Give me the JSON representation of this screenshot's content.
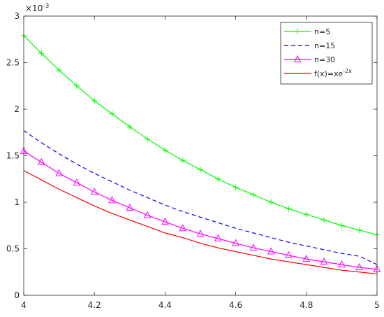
{
  "chart_data": {
    "type": "line",
    "title": "",
    "xlabel": "",
    "ylabel": "",
    "y_exponent_label": "×10",
    "y_exponent_power": "-3",
    "xlim": [
      4,
      5
    ],
    "ylim": [
      0,
      3
    ],
    "x_ticks": [
      4,
      4.2,
      4.4,
      4.6,
      4.8,
      5
    ],
    "x_tick_labels": [
      "4",
      "4.2",
      "4.4",
      "4.6",
      "4.8",
      "5"
    ],
    "y_ticks": [
      0,
      0.5,
      1,
      1.5,
      2,
      2.5,
      3
    ],
    "y_tick_labels": [
      "0",
      "0.5",
      "1",
      "1.5",
      "2",
      "2.5",
      "3"
    ],
    "grid": false,
    "legend_position": "top-right",
    "x": [
      4,
      4.05,
      4.1,
      4.15,
      4.2,
      4.25,
      4.3,
      4.35,
      4.4,
      4.45,
      4.5,
      4.55,
      4.6,
      4.65,
      4.7,
      4.75,
      4.8,
      4.85,
      4.9,
      4.95,
      5
    ],
    "series": [
      {
        "name": "n=5",
        "color": "#00ff00",
        "line_style": "solid",
        "marker": "plus",
        "values": [
          2.79,
          2.6,
          2.42,
          2.25,
          2.09,
          1.95,
          1.81,
          1.68,
          1.56,
          1.45,
          1.35,
          1.25,
          1.16,
          1.08,
          1.0,
          0.93,
          0.87,
          0.81,
          0.75,
          0.7,
          0.65
        ]
      },
      {
        "name": "n=15",
        "color": "#0000ff",
        "line_style": "dashed",
        "marker": "none",
        "values": [
          1.77,
          1.64,
          1.52,
          1.41,
          1.31,
          1.22,
          1.13,
          1.05,
          0.97,
          0.9,
          0.84,
          0.78,
          0.72,
          0.67,
          0.62,
          0.57,
          0.53,
          0.49,
          0.45,
          0.42,
          0.33
        ]
      },
      {
        "name": "n=30",
        "color": "#ff00ff",
        "line_style": "solid",
        "marker": "triangle",
        "values": [
          1.55,
          1.43,
          1.31,
          1.21,
          1.11,
          1.02,
          0.94,
          0.86,
          0.79,
          0.72,
          0.66,
          0.61,
          0.56,
          0.51,
          0.47,
          0.43,
          0.39,
          0.36,
          0.33,
          0.3,
          0.28
        ]
      },
      {
        "name": "f(x)=xe",
        "name_superscript": "-2x",
        "color": "#ff0000",
        "line_style": "solid",
        "marker": "none",
        "values": [
          1.34,
          1.24,
          1.14,
          1.05,
          0.96,
          0.88,
          0.81,
          0.74,
          0.67,
          0.62,
          0.56,
          0.51,
          0.47,
          0.43,
          0.39,
          0.36,
          0.33,
          0.3,
          0.27,
          0.25,
          0.23
        ]
      }
    ]
  }
}
